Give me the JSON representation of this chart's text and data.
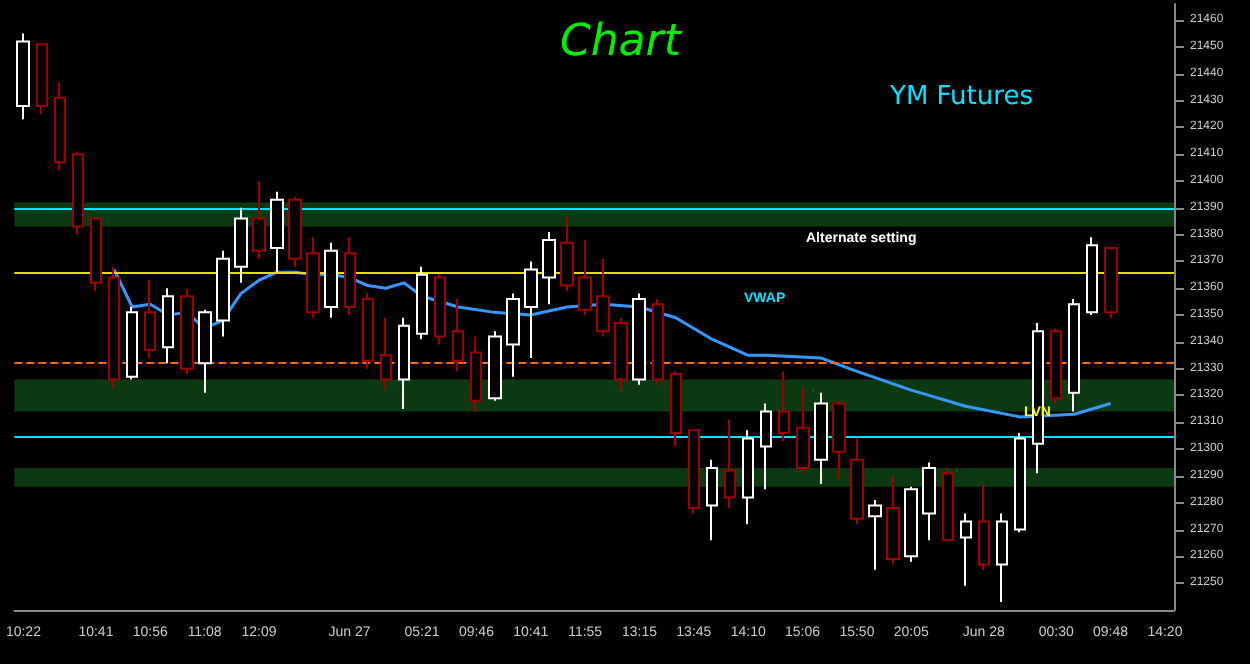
{
  "chart_data": {
    "type": "candlestick",
    "title": "Chart",
    "subtitle": "YM Futures",
    "categories": [
      "10:22",
      null,
      null,
      null,
      "10:41",
      null,
      null,
      "10:56",
      null,
      null,
      "11:08",
      null,
      null,
      "12:09",
      null,
      null,
      null,
      null,
      "Jun 27",
      null,
      null,
      null,
      "05:21",
      null,
      null,
      "09:46",
      null,
      null,
      "10:41",
      null,
      null,
      "11:55",
      null,
      null,
      "13:15",
      null,
      null,
      "13:45",
      null,
      null,
      "14:10",
      null,
      null,
      "15:06",
      null,
      null,
      "15:50",
      null,
      null,
      "20:05",
      null,
      null,
      null,
      "Jun 28",
      null,
      null,
      null,
      "00:30",
      null,
      null,
      "09:48",
      null,
      null,
      "14:20"
    ],
    "ohlc": [
      [
        21428,
        21455,
        21423,
        21452
      ],
      [
        21451,
        21451,
        21425,
        21428
      ],
      [
        21431,
        21437,
        21404,
        21407
      ],
      [
        21410,
        21411,
        21380,
        21383
      ],
      [
        21386,
        21386,
        21359,
        21362
      ],
      [
        21364,
        21368,
        21323,
        21326
      ],
      [
        21327,
        21353,
        21326,
        21351
      ],
      [
        21351,
        21363,
        21334,
        21337
      ],
      [
        21338,
        21360,
        21332,
        21357
      ],
      [
        21357,
        21360,
        21328,
        21330
      ],
      [
        21332,
        21352,
        21321,
        21351
      ],
      [
        21348,
        21374,
        21342,
        21371
      ],
      [
        21368,
        21390,
        21362,
        21386
      ],
      [
        21386,
        21400,
        21371,
        21374
      ],
      [
        21375,
        21396,
        21366,
        21393
      ],
      [
        21393,
        21394,
        21368,
        21371
      ],
      [
        21373,
        21379,
        21349,
        21351
      ],
      [
        21353,
        21377,
        21349,
        21374
      ],
      [
        21373,
        21379,
        21350,
        21353
      ],
      [
        21356,
        21358,
        21330,
        21333
      ],
      [
        21335,
        21349,
        21322,
        21326
      ],
      [
        21326,
        21349,
        21315,
        21346
      ],
      [
        21343,
        21368,
        21341,
        21365
      ],
      [
        21364,
        21365,
        21339,
        21342
      ],
      [
        21344,
        21356,
        21329,
        21333
      ],
      [
        21336,
        21342,
        21314,
        21318
      ],
      [
        21319,
        21344,
        21318,
        21342
      ],
      [
        21339,
        21358,
        21327,
        21356
      ],
      [
        21353,
        21370,
        21334,
        21367
      ],
      [
        21364,
        21381,
        21354,
        21378
      ],
      [
        21377,
        21387,
        21359,
        21361
      ],
      [
        21364,
        21378,
        21350,
        21352
      ],
      [
        21357,
        21371,
        21342,
        21344
      ],
      [
        21347,
        21349,
        21322,
        21326
      ],
      [
        21326,
        21358,
        21324,
        21356
      ],
      [
        21354,
        21356,
        21324,
        21326
      ],
      [
        21328,
        21329,
        21301,
        21306
      ],
      [
        21307,
        21307,
        21276,
        21278
      ],
      [
        21279,
        21296,
        21266,
        21293
      ],
      [
        21292,
        21311,
        21278,
        21282
      ],
      [
        21282,
        21307,
        21272,
        21304
      ],
      [
        21301,
        21317,
        21285,
        21314
      ],
      [
        21314,
        21329,
        21303,
        21306
      ],
      [
        21308,
        21323,
        21291,
        21293
      ],
      [
        21296,
        21321,
        21287,
        21317
      ],
      [
        21317,
        21318,
        21289,
        21299
      ],
      [
        21296,
        21304,
        21272,
        21274
      ],
      [
        21275,
        21281,
        21255,
        21279
      ],
      [
        21278,
        21290,
        21257,
        21259
      ],
      [
        21260,
        21286,
        21258,
        21285
      ],
      [
        21276,
        21295,
        21266,
        21293
      ],
      [
        21291,
        21293,
        21266,
        21266
      ],
      [
        21267,
        21276,
        21249,
        21273
      ],
      [
        21273,
        21287,
        21255,
        21257
      ],
      [
        21257,
        21276,
        21243,
        21273
      ],
      [
        21270,
        21306,
        21269,
        21304
      ],
      [
        21302,
        21347,
        21291,
        21344
      ],
      [
        21344,
        21345,
        21317,
        21319
      ],
      [
        21321,
        21356,
        21314,
        21354
      ],
      [
        21351,
        21379,
        21350,
        21376
      ],
      [
        21375,
        21375,
        21349,
        21351
      ],
      null,
      null,
      null
    ],
    "series": [
      {
        "type": "line",
        "color": "#3399ff",
        "values": [
          null,
          null,
          null,
          null,
          null,
          21367,
          21353,
          21354,
          21350,
          21351,
          21345,
          21348,
          21358,
          21363,
          21366,
          21366,
          21365,
          21365,
          21364,
          21361,
          21360,
          21362,
          21357,
          null,
          21353,
          null,
          21351,
          null,
          21350,
          null,
          21353,
          null,
          21354,
          null,
          21353,
          null,
          21349,
          null,
          21341,
          null,
          21335,
          21335,
          null,
          null,
          21334,
          null,
          21329,
          null,
          null,
          21322,
          null,
          null,
          21316,
          null,
          null,
          21312,
          null,
          null,
          21313,
          null,
          21317,
          null,
          null,
          null
        ]
      }
    ],
    "ylim": [
      21240,
      21466
    ],
    "yticks": [
      21250,
      21260,
      21270,
      21280,
      21290,
      21300,
      21310,
      21320,
      21330,
      21340,
      21350,
      21360,
      21370,
      21380,
      21390,
      21400,
      21410,
      21420,
      21430,
      21440,
      21450,
      21460
    ],
    "grid": false,
    "ref_lines": [
      {
        "axis": "y",
        "value": 21390,
        "color": "#00e5ff",
        "line_style": "solid"
      },
      {
        "axis": "y",
        "value": 21366,
        "color": "#e0e000",
        "line_style": "solid"
      },
      {
        "axis": "y",
        "value": 21332,
        "color": "#ff6a00",
        "line_style": "dashed"
      },
      {
        "axis": "y",
        "value": 21305,
        "color": "#00e5ff",
        "line_style": "solid"
      }
    ],
    "bands": [
      {
        "axis": "y",
        "from": 21383,
        "to": 21392,
        "color": "#0b3a12"
      },
      {
        "axis": "y",
        "from": 21314,
        "to": 21326,
        "color": "#0b3a12"
      },
      {
        "axis": "y",
        "from": 21286,
        "to": 21293,
        "color": "#0b3a12"
      }
    ],
    "annotations": [
      "Alternate setting",
      "VWAP",
      "LVN"
    ]
  }
}
